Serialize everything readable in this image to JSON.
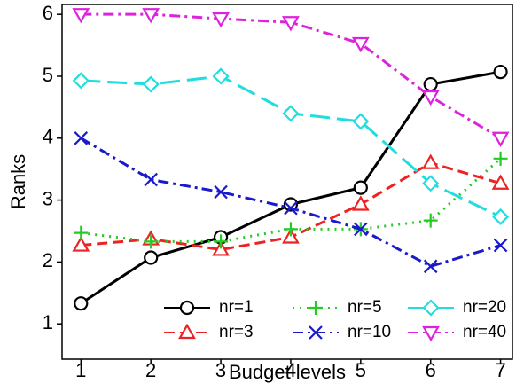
{
  "chart_data": {
    "type": "line",
    "x_label": "Budget levels",
    "y_label": "Ranks",
    "x": [
      1,
      2,
      3,
      4,
      5,
      6,
      7
    ],
    "xlim": [
      0.73,
      7.17
    ],
    "ylim": [
      0.43,
      6.16
    ],
    "xticks": [
      1,
      2,
      3,
      4,
      5,
      6,
      7
    ],
    "yticks": [
      1,
      2,
      3,
      4,
      5,
      6
    ],
    "legend": "lower right",
    "series": [
      {
        "name": "nr=1",
        "color": "#000000",
        "marker": "circle",
        "linestyle": "solid",
        "values": [
          1.33,
          2.07,
          2.4,
          2.93,
          3.2,
          4.87,
          5.07
        ]
      },
      {
        "name": "nr=3",
        "color": "#ee2222",
        "marker": "triangle-up",
        "linestyle": "dashed",
        "values": [
          2.27,
          2.37,
          2.2,
          2.4,
          2.93,
          3.6,
          3.27
        ]
      },
      {
        "name": "nr=5",
        "color": "#22cc22",
        "marker": "plus",
        "linestyle": "dotted",
        "values": [
          2.47,
          2.33,
          2.33,
          2.53,
          2.53,
          2.67,
          3.67
        ]
      },
      {
        "name": "nr=10",
        "color": "#1a1acc",
        "marker": "x",
        "linestyle": "dashdot",
        "values": [
          4.0,
          3.33,
          3.13,
          2.87,
          2.53,
          1.93,
          2.27
        ]
      },
      {
        "name": "nr=20",
        "color": "#22dddd",
        "marker": "diamond",
        "linestyle": "longdash",
        "values": [
          4.93,
          4.87,
          5.0,
          4.4,
          4.27,
          3.27,
          2.73
        ]
      },
      {
        "name": "nr=40",
        "color": "#dd22dd",
        "marker": "triangle-down",
        "linestyle": "dashdot",
        "values": [
          6.0,
          6.0,
          5.93,
          5.87,
          5.53,
          4.67,
          4.0
        ]
      }
    ]
  }
}
